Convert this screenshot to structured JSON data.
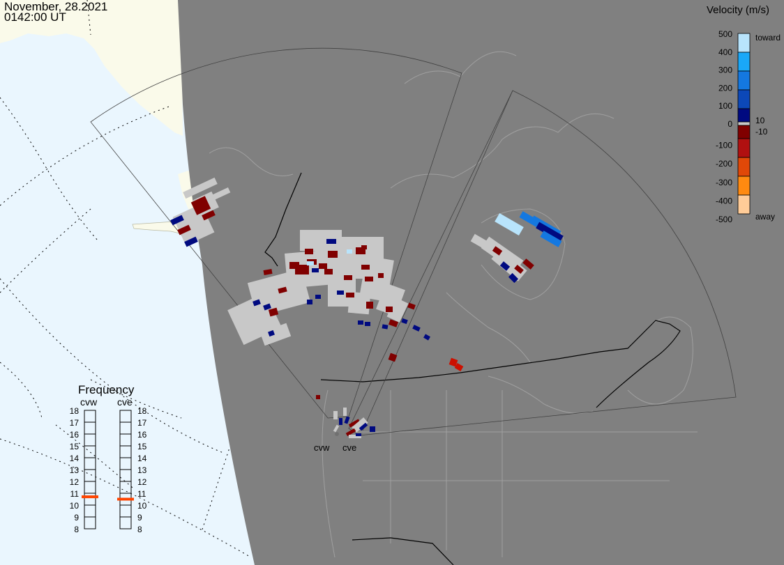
{
  "header": {
    "date": "November, 28.2021",
    "time": "0142:00 UT"
  },
  "colorbar": {
    "title": "Velocity (m/s)",
    "ticks": [
      "500",
      "400",
      "300",
      "200",
      "100",
      "0",
      "-100",
      "-200",
      "-300",
      "-400",
      "-500"
    ],
    "toward_label": "toward",
    "away_label": "away",
    "upper_threshold": "10",
    "lower_threshold": "-10",
    "colors": [
      "#b8e4fc",
      "#1aa8f8",
      "#1478e0",
      "#0c48b8",
      "#000a80",
      "#c8c8c8",
      "#800000",
      "#b01010",
      "#e04808",
      "#ff8a10",
      "#ffcc98"
    ]
  },
  "frequency": {
    "title": "Frequency",
    "unit_ticks": [
      "18",
      "17",
      "16",
      "15",
      "14",
      "13",
      "12",
      "11",
      "10",
      "9",
      "8"
    ],
    "radars": [
      {
        "name": "cvw",
        "value_mhz": 10.7
      },
      {
        "name": "cve",
        "value_mhz": 10.5
      }
    ],
    "marker_color": "#ff4400"
  },
  "map": {
    "radar_labels": [
      "cvw",
      "cve"
    ],
    "ocean_color": "#eaf6fe",
    "land_day_color": "#fafaea",
    "night_color": "#808080",
    "scatter_ground_color": "#c8c8c8"
  }
}
